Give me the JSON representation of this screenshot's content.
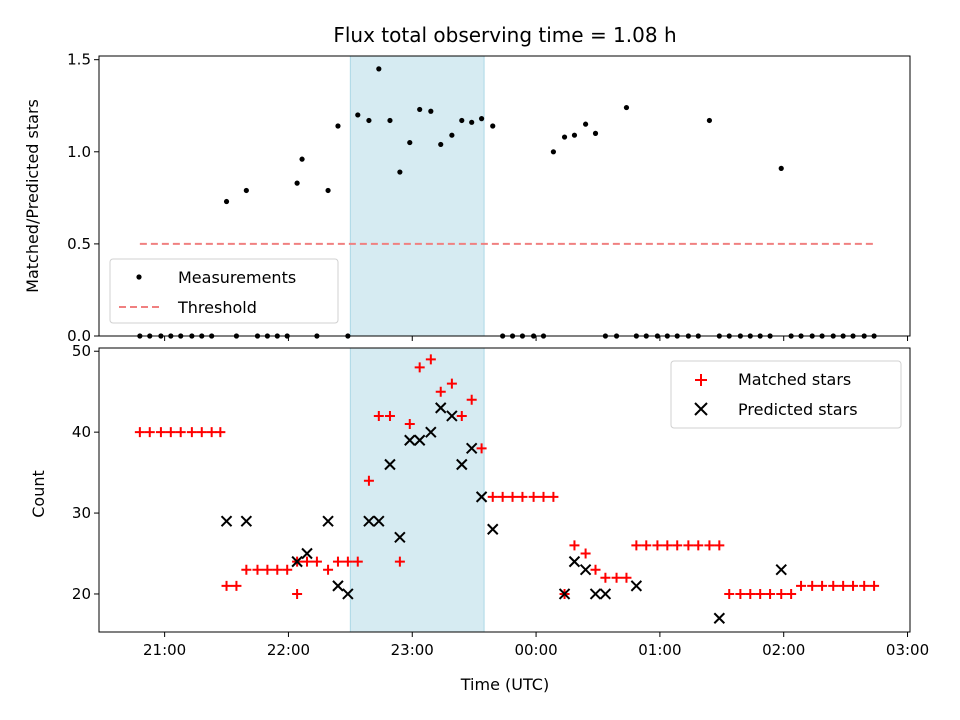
{
  "title": "Flux total observing time = 1.08 h",
  "colors": {
    "measurements": "#000000",
    "threshold": "#f08080",
    "matched": "#ff0000",
    "predicted": "#000000",
    "highlight": "#add8e6"
  },
  "chart_data": [
    {
      "type": "scatter",
      "title": "Flux total observing time = 1.08 h",
      "ylabel": "Matched/Predicted stars",
      "xlabel": "",
      "xlim": [
        20.47,
        27.02
      ],
      "ylim": [
        0,
        1.52
      ],
      "yticks": [
        "0.0",
        "0.5",
        "1.0",
        "1.5"
      ],
      "highlight_span": [
        22.5,
        23.58
      ],
      "legend": [
        "Measurements",
        "Threshold"
      ],
      "legend_position": "lower left",
      "threshold": {
        "name": "Threshold",
        "y": 0.5,
        "x": [
          20.8,
          26.75
        ],
        "style": "dashed"
      },
      "series": [
        {
          "name": "Measurements",
          "x": [
            20.8,
            20.88,
            20.97,
            21.05,
            21.13,
            21.22,
            21.3,
            21.38,
            21.5,
            21.58,
            21.66,
            21.75,
            21.83,
            21.91,
            21.99,
            22.07,
            22.11,
            22.23,
            22.32,
            22.4,
            22.48,
            22.56,
            22.65,
            22.73,
            22.82,
            22.9,
            22.98,
            23.06,
            23.15,
            23.23,
            23.32,
            23.4,
            23.48,
            23.56,
            23.65,
            23.73,
            23.81,
            23.89,
            23.98,
            24.06,
            24.14,
            24.23,
            24.31,
            24.4,
            24.48,
            24.56,
            24.65,
            24.73,
            24.81,
            24.89,
            24.98,
            25.06,
            25.14,
            25.23,
            25.31,
            25.4,
            25.48,
            25.56,
            25.65,
            25.73,
            25.81,
            25.89,
            25.98,
            26.06,
            26.14,
            26.23,
            26.31,
            26.4,
            26.48,
            26.56,
            26.65,
            26.73
          ],
          "y": [
            0,
            0,
            0,
            0,
            0,
            0,
            0,
            0,
            0.73,
            0,
            0.79,
            0,
            0,
            0,
            0,
            0.83,
            0.96,
            0,
            0.79,
            1.14,
            0,
            1.2,
            1.17,
            1.45,
            1.17,
            0.89,
            1.05,
            1.23,
            1.22,
            1.04,
            1.09,
            1.17,
            1.16,
            1.18,
            1.14,
            0,
            0,
            0,
            0,
            0,
            1.0,
            1.08,
            1.09,
            1.15,
            1.1,
            0,
            0,
            1.24,
            0,
            0,
            0,
            0,
            0,
            0,
            0,
            1.17,
            0,
            0,
            0,
            0,
            0,
            0,
            0.91,
            0,
            0,
            0,
            0,
            0,
            0,
            0,
            0,
            0
          ]
        }
      ]
    },
    {
      "type": "scatter",
      "title": "",
      "xlabel": "Time (UTC)",
      "ylabel": "Count",
      "xlim": [
        20.47,
        27.02
      ],
      "ylim": [
        15.3,
        50.4
      ],
      "yticks": [
        "20",
        "30",
        "40",
        "50"
      ],
      "xticks": [
        "21:00",
        "22:00",
        "23:00",
        "00:00",
        "01:00",
        "02:00",
        "03:00"
      ],
      "xtick_values": [
        21,
        22,
        23,
        24,
        25,
        26,
        27
      ],
      "highlight_span": [
        22.5,
        23.58
      ],
      "legend": [
        "Matched stars",
        "Predicted stars"
      ],
      "legend_position": "upper right",
      "series": [
        {
          "name": "Matched stars",
          "marker": "+",
          "x": [
            20.8,
            20.88,
            20.97,
            21.05,
            21.13,
            21.22,
            21.3,
            21.38,
            21.45,
            21.5,
            21.58,
            21.66,
            21.75,
            21.83,
            21.91,
            21.99,
            22.07,
            22.07,
            22.15,
            22.23,
            22.32,
            22.4,
            22.48,
            22.56,
            22.65,
            22.73,
            22.82,
            22.9,
            22.98,
            23.06,
            23.15,
            23.23,
            23.32,
            23.4,
            23.48,
            23.56,
            23.65,
            23.73,
            23.81,
            23.89,
            23.98,
            24.06,
            24.14,
            24.23,
            24.31,
            24.4,
            24.48,
            24.56,
            24.65,
            24.73,
            24.81,
            24.89,
            24.98,
            25.06,
            25.14,
            25.23,
            25.31,
            25.4,
            25.48,
            25.56,
            25.65,
            25.73,
            25.81,
            25.89,
            25.98,
            26.06,
            26.14,
            26.23,
            26.31,
            26.4,
            26.48,
            26.56,
            26.65,
            26.73
          ],
          "y": [
            40,
            40,
            40,
            40,
            40,
            40,
            40,
            40,
            40,
            21,
            21,
            23,
            23,
            23,
            23,
            23,
            20,
            24,
            24,
            24,
            23,
            24,
            24,
            24,
            34,
            42,
            42,
            24,
            41,
            48,
            49,
            45,
            46,
            42,
            44,
            38,
            32,
            32,
            32,
            32,
            32,
            32,
            32,
            20,
            26,
            25,
            23,
            22,
            22,
            22,
            26,
            26,
            26,
            26,
            26,
            26,
            26,
            26,
            26,
            20,
            20,
            20,
            20,
            20,
            20,
            20,
            21,
            21,
            21,
            21,
            21,
            21,
            21,
            21
          ]
        },
        {
          "name": "Predicted stars",
          "marker": "x",
          "x": [
            21.5,
            21.66,
            22.07,
            22.15,
            22.32,
            22.4,
            22.48,
            22.65,
            22.73,
            22.82,
            22.9,
            22.98,
            23.06,
            23.15,
            23.23,
            23.32,
            23.4,
            23.48,
            23.56,
            23.65,
            24.23,
            24.31,
            24.4,
            24.48,
            24.56,
            24.81,
            25.48,
            25.98
          ],
          "y": [
            29,
            29,
            24,
            25,
            29,
            21,
            20,
            29,
            29,
            36,
            27,
            39,
            39,
            40,
            43,
            42,
            36,
            38,
            32,
            28,
            20,
            24,
            23,
            20,
            20,
            21,
            17,
            23
          ]
        }
      ]
    }
  ]
}
